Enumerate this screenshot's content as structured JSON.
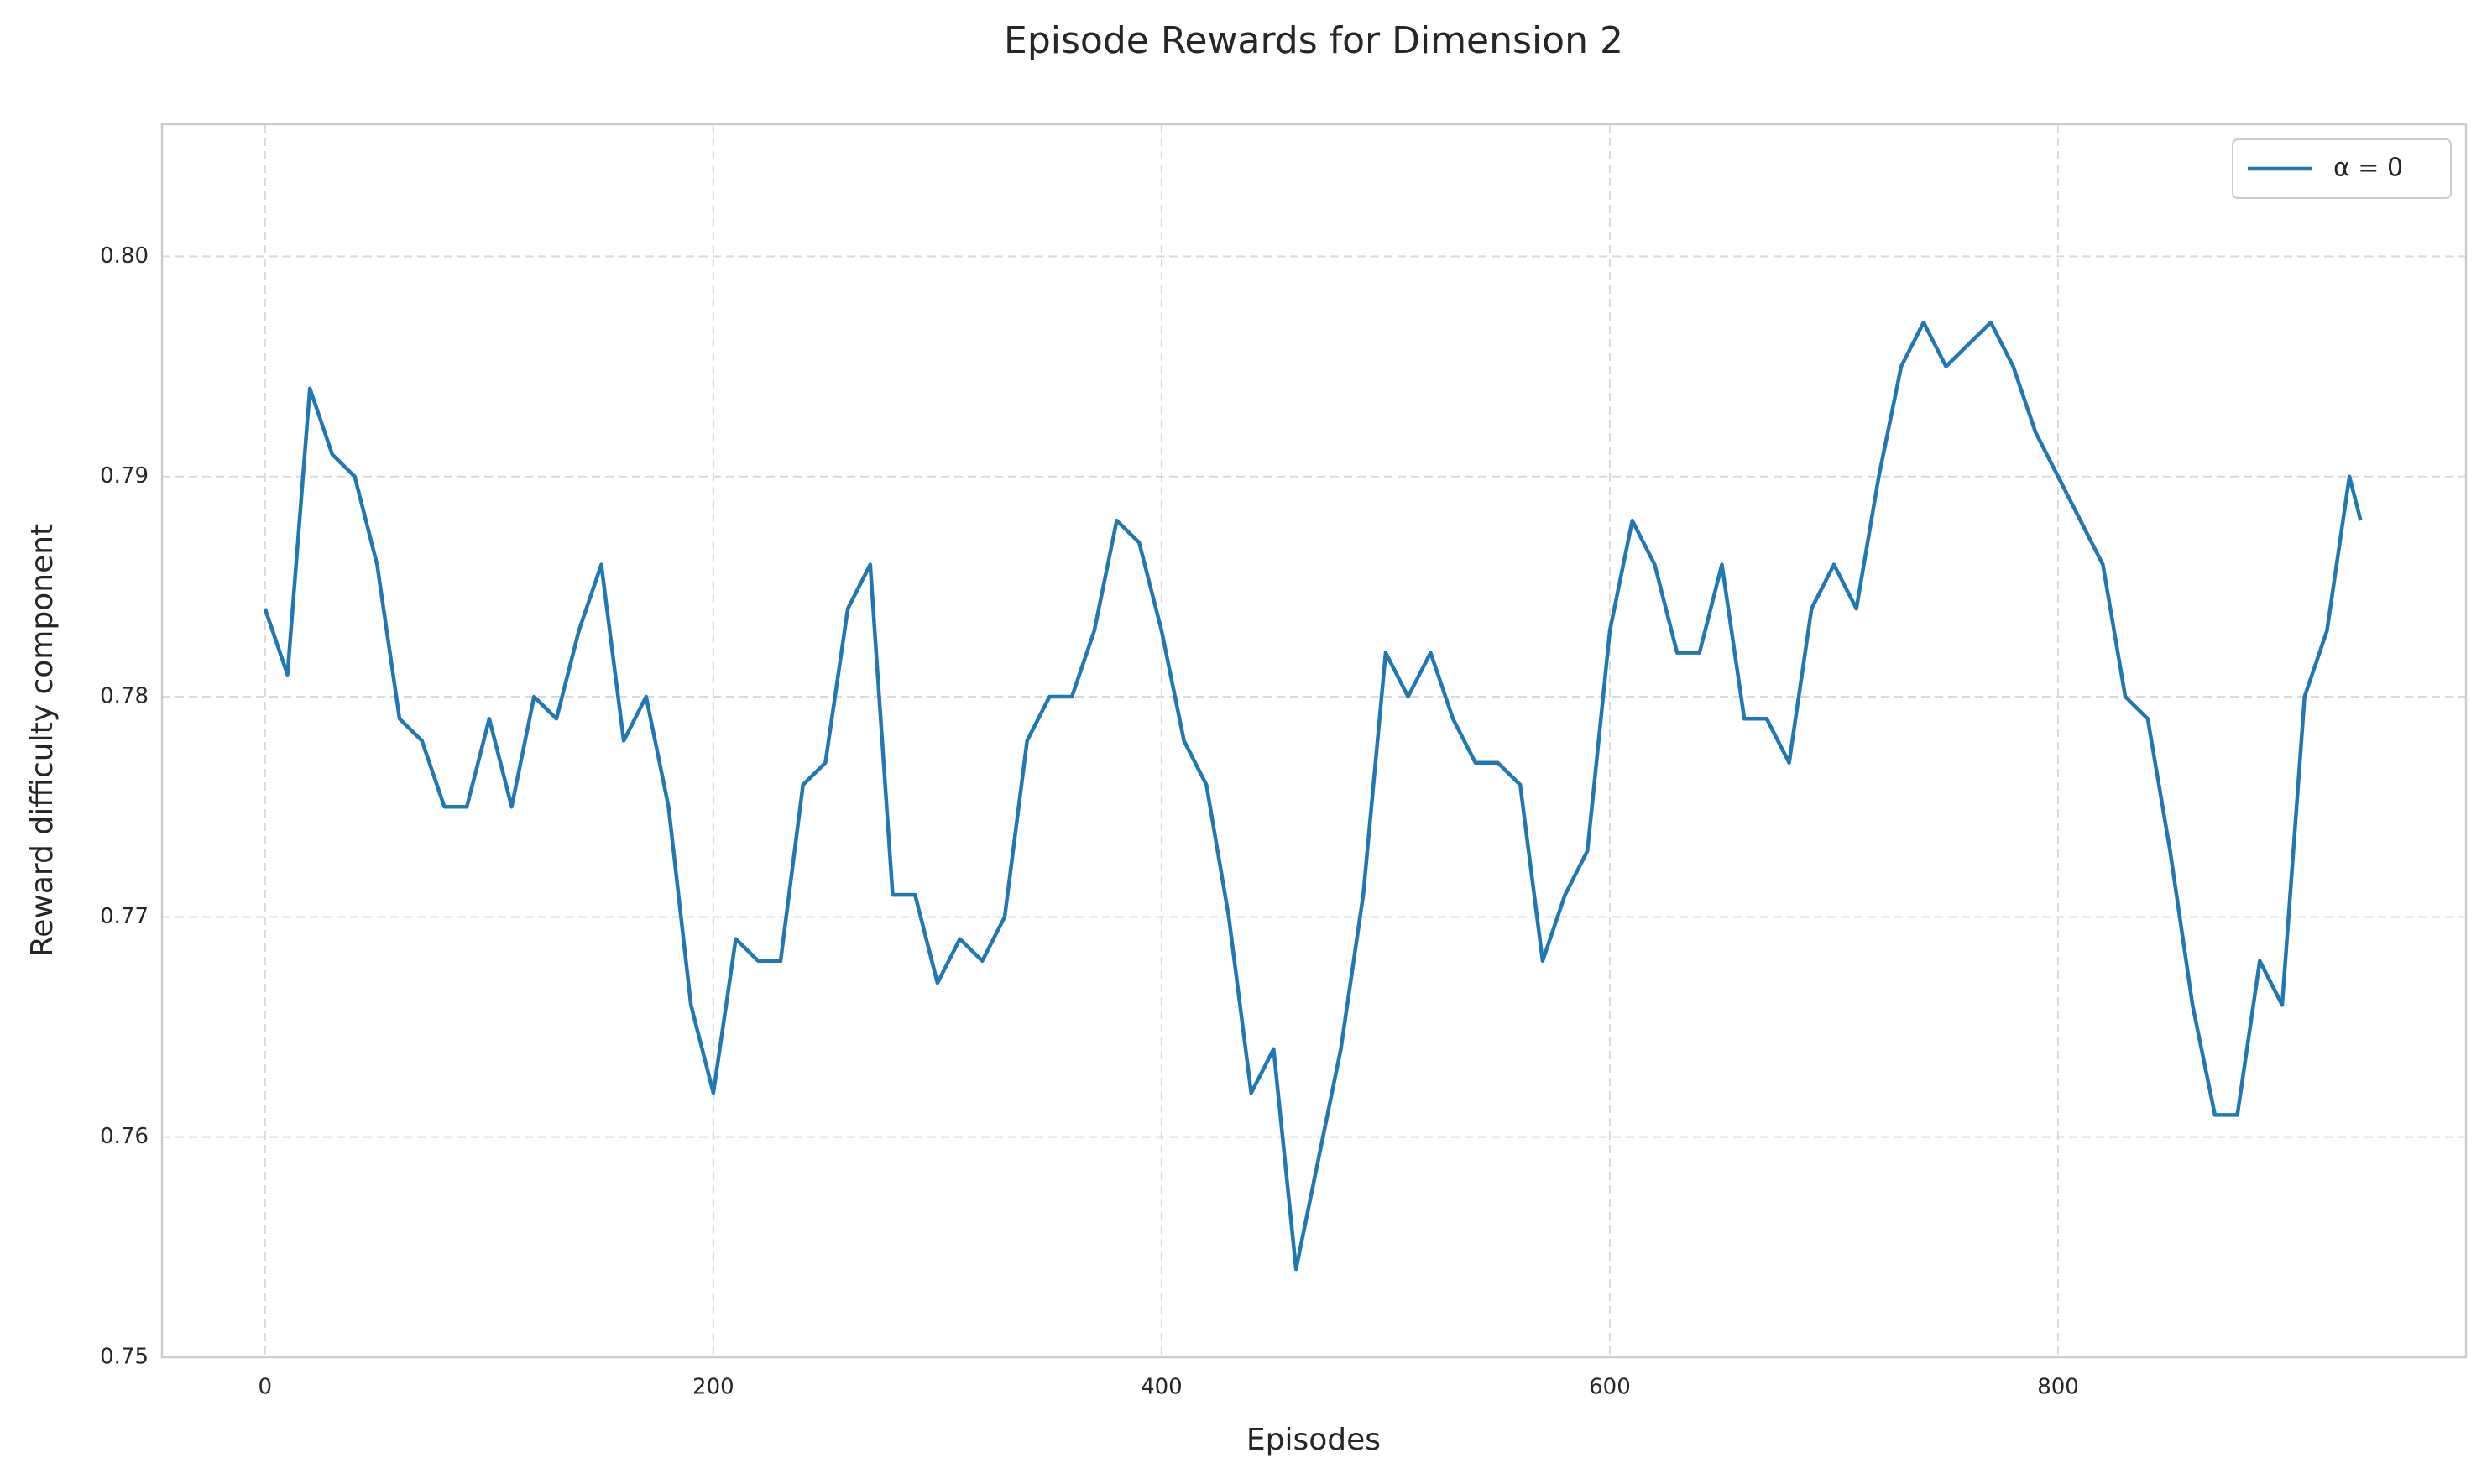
{
  "chart_data": {
    "type": "line",
    "title": "Episode Rewards for Dimension 2",
    "xlabel": "Episodes",
    "ylabel": "Reward difficulty component",
    "x": [
      0,
      10,
      20,
      30,
      40,
      50,
      60,
      70,
      80,
      90,
      100,
      110,
      120,
      130,
      140,
      150,
      160,
      170,
      180,
      190,
      200,
      210,
      220,
      230,
      240,
      250,
      260,
      270,
      280,
      290,
      300,
      310,
      320,
      330,
      340,
      350,
      360,
      370,
      380,
      390,
      400,
      410,
      420,
      430,
      440,
      450,
      460,
      470,
      480,
      490,
      500,
      510,
      520,
      530,
      540,
      550,
      560,
      570,
      580,
      590,
      600,
      610,
      620,
      630,
      640,
      650,
      660,
      670,
      680,
      690,
      700,
      710,
      720,
      730,
      740,
      750,
      760,
      770,
      780,
      790,
      800,
      810,
      820,
      830,
      840,
      850,
      860,
      870,
      880,
      890,
      900,
      910,
      920,
      930,
      935
    ],
    "series": [
      {
        "name": "α = 0",
        "color": "#1f77b4",
        "values": [
          0.784,
          0.781,
          0.794,
          0.791,
          0.79,
          0.786,
          0.779,
          0.778,
          0.775,
          0.775,
          0.779,
          0.775,
          0.78,
          0.779,
          0.783,
          0.786,
          0.778,
          0.78,
          0.775,
          0.766,
          0.762,
          0.769,
          0.768,
          0.768,
          0.776,
          0.777,
          0.784,
          0.786,
          0.771,
          0.771,
          0.767,
          0.769,
          0.768,
          0.77,
          0.778,
          0.78,
          0.78,
          0.783,
          0.788,
          0.787,
          0.783,
          0.778,
          0.776,
          0.77,
          0.762,
          0.764,
          0.754,
          0.759,
          0.764,
          0.771,
          0.782,
          0.78,
          0.782,
          0.779,
          0.777,
          0.777,
          0.776,
          0.768,
          0.771,
          0.773,
          0.783,
          0.788,
          0.786,
          0.782,
          0.782,
          0.786,
          0.779,
          0.779,
          0.777,
          0.784,
          0.786,
          0.784,
          0.79,
          0.795,
          0.797,
          0.795,
          0.796,
          0.797,
          0.795,
          0.792,
          0.79,
          0.788,
          0.786,
          0.78,
          0.779,
          0.773,
          0.766,
          0.761,
          0.761,
          0.768,
          0.766,
          0.78,
          0.783,
          0.79,
          0.788
        ]
      }
    ],
    "xlim": [
      -46,
      982
    ],
    "ylim": [
      0.75,
      0.806
    ],
    "xticks": [
      0,
      200,
      400,
      600,
      800
    ],
    "yticks": [
      0.75,
      0.76,
      0.77,
      0.78,
      0.79,
      {
        "value": 0.8,
        "label": "0.80"
      }
    ],
    "grid": true,
    "legend": "upper right"
  }
}
